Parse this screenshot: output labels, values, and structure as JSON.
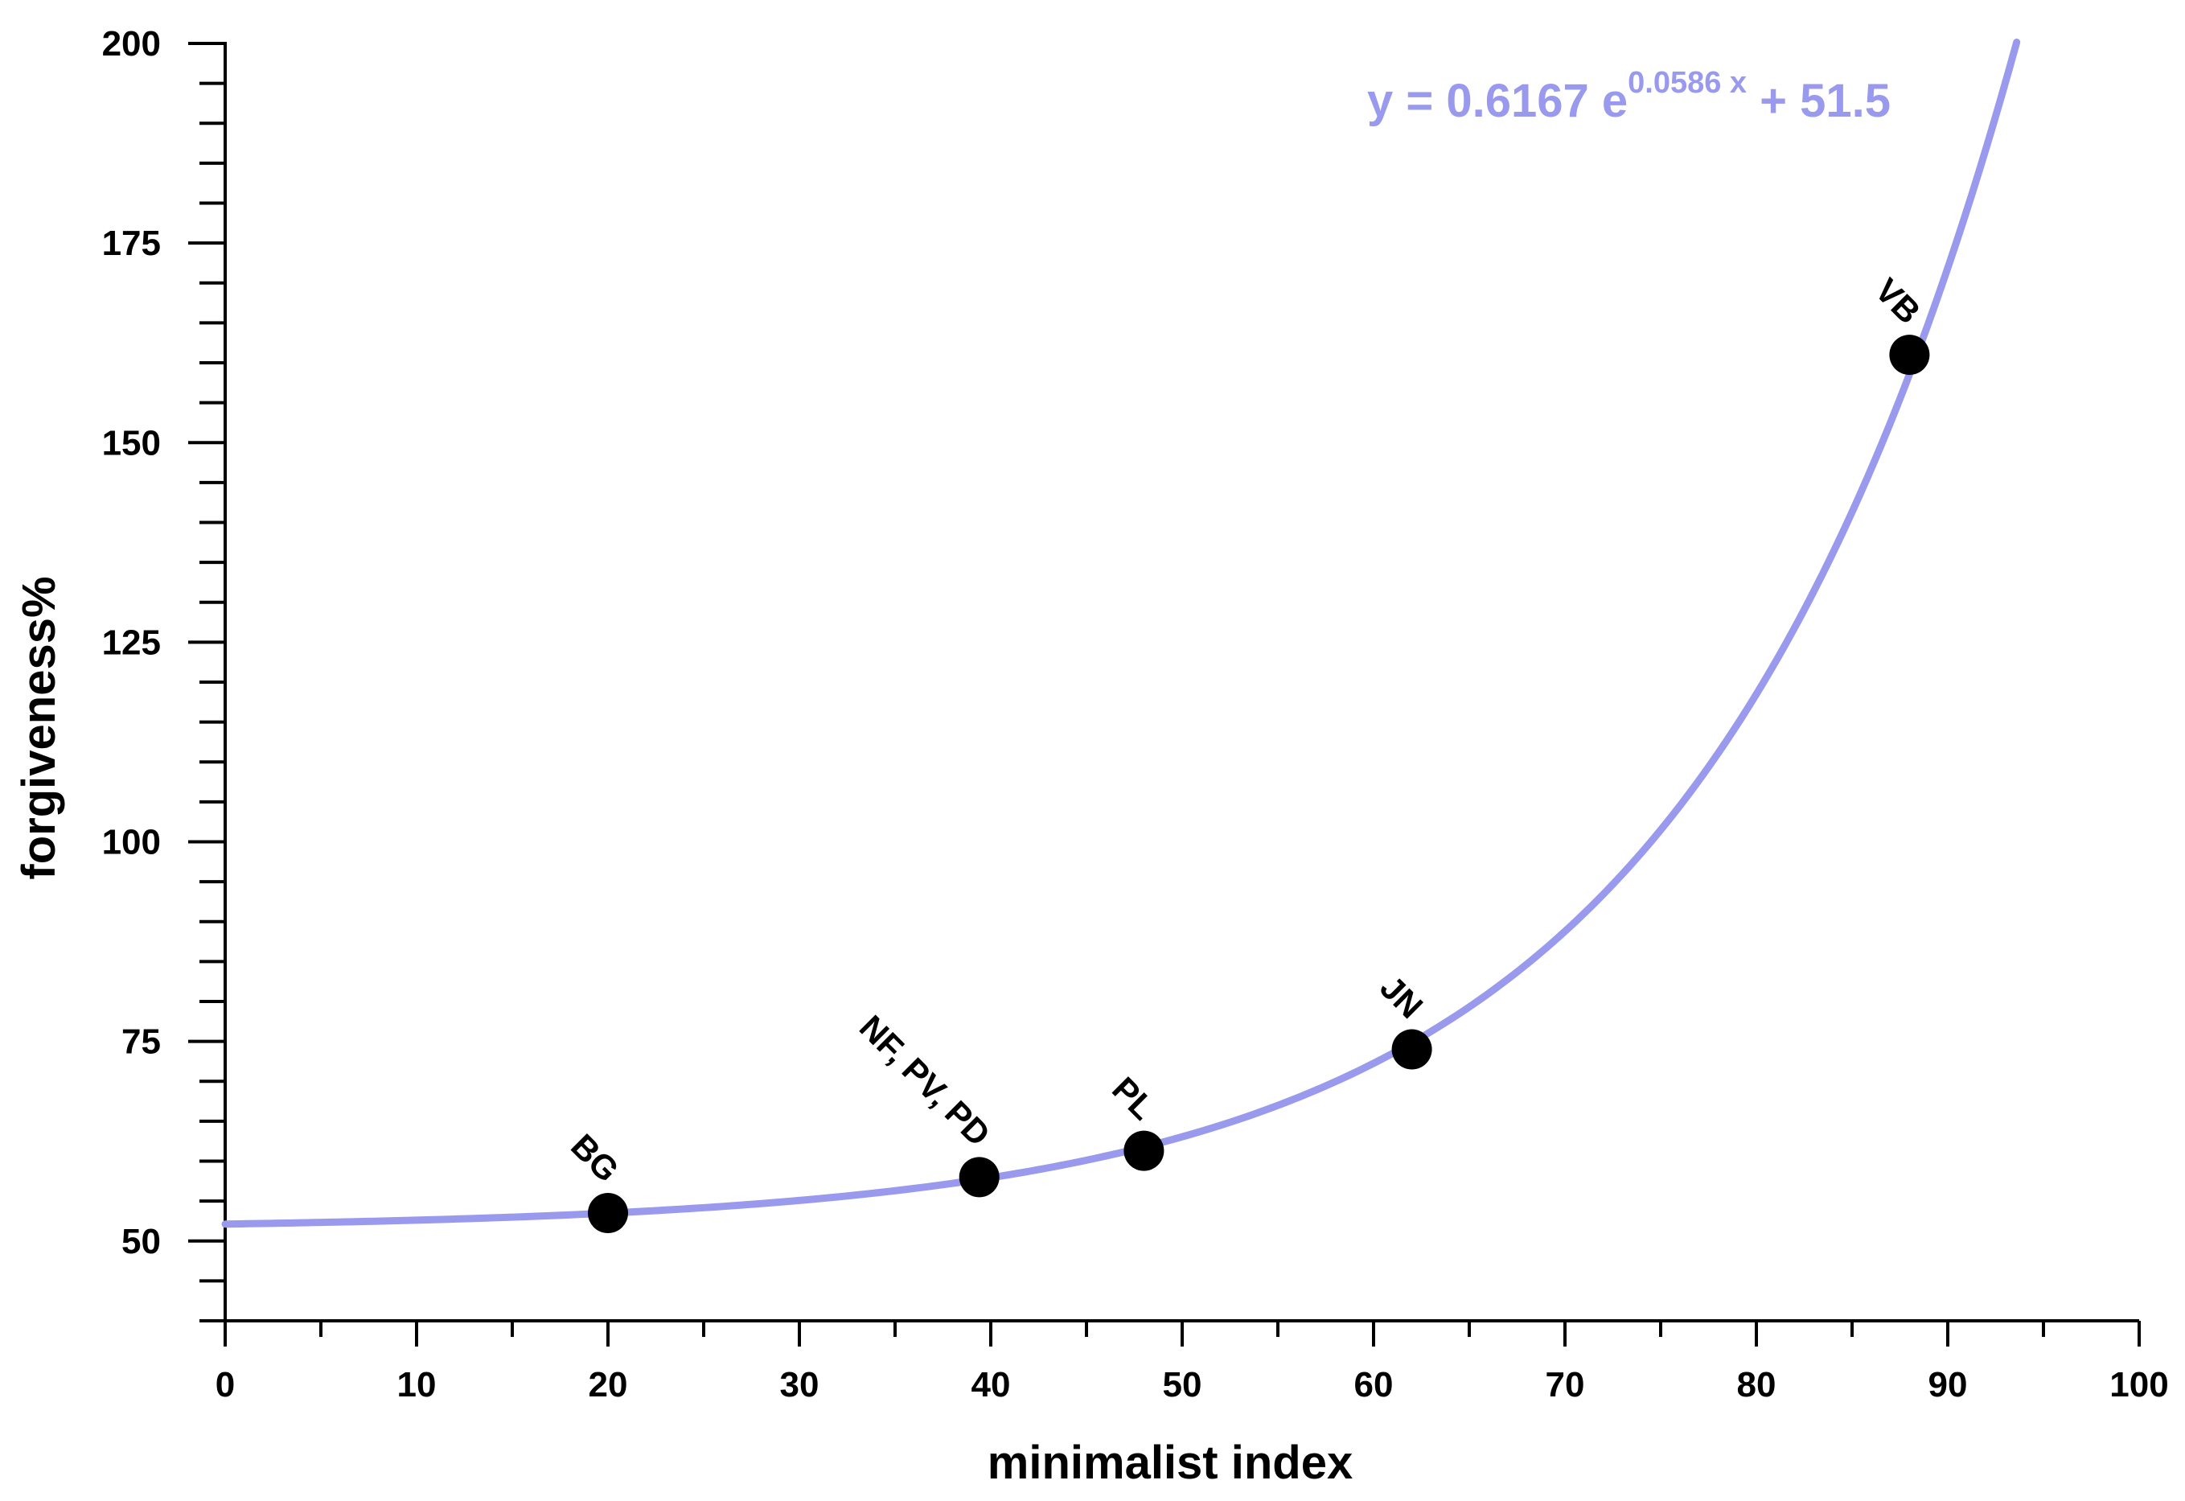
{
  "chart_data": {
    "type": "scatter",
    "title": "",
    "xlabel": "minimalist index",
    "ylabel": "forgiveness%",
    "xlim": [
      0,
      100
    ],
    "ylim": [
      40,
      200
    ],
    "x_ticks": [
      "0",
      "10",
      "20",
      "30",
      "40",
      "50",
      "60",
      "70",
      "80",
      "90",
      "100"
    ],
    "y_ticks": [
      "50",
      "75",
      "100",
      "125",
      "150",
      "175",
      "200"
    ],
    "grid": false,
    "points": [
      {
        "label": "BG",
        "x": 20,
        "y": 53.5
      },
      {
        "label": "NF, PV, PD",
        "x": 39.4,
        "y": 58
      },
      {
        "label": "PL",
        "x": 48,
        "y": 61.3
      },
      {
        "label": "JN",
        "x": 62,
        "y": 74
      },
      {
        "label": "VB",
        "x": 88,
        "y": 161
      }
    ],
    "fit": {
      "text_prefix": "y = 0.6167 e",
      "text_exponent": "0.0586 x",
      "text_suffix": " + 51.5",
      "a": 0.6167,
      "b": 0.0586,
      "c": 51.5,
      "x_range": [
        0,
        93.6
      ],
      "color": "#9999ee"
    },
    "colors": {
      "axis": "#000000",
      "point": "#000000"
    }
  }
}
